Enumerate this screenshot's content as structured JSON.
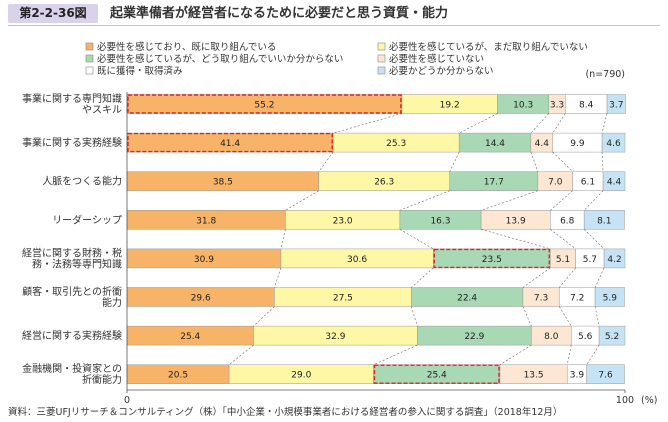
{
  "figure": {
    "number": "第2-2-36図",
    "title": "起業準備者が経営者になるために必要だと思う資質・能力",
    "source": "資料：三菱UFJリサーチ＆コンサルティング（株）「中小企業・小規模事業者における経営者の参入に関する調査」（2018年12月）"
  },
  "chart_data": {
    "type": "bar",
    "orientation": "horizontal",
    "stacked": true,
    "note": "(n=790)",
    "xlim": [
      0,
      100
    ],
    "x_ticks": [
      "0",
      "100"
    ],
    "x_unit": "(%)",
    "legend_position": "top",
    "categories": [
      "事業に関する専門知識やスキル",
      "事業に関する実務経験",
      "人脈をつくる能力",
      "リーダーシップ",
      "経営に関する財務・税務・法務等専門知識",
      "顧客・取引先との折衝能力",
      "経営に関する実務経験",
      "金融機関・投資家との折衝能力"
    ],
    "series": [
      {
        "name": "必要性を感じており、既に取り組んでいる",
        "color": "#f7b367",
        "values": [
          55.2,
          41.4,
          38.5,
          31.8,
          30.9,
          29.6,
          25.4,
          20.5
        ]
      },
      {
        "name": "必要性を感じているが、まだ取り組んでいない",
        "color": "#fdf7a6",
        "values": [
          19.2,
          25.3,
          26.3,
          23.0,
          30.6,
          27.5,
          32.9,
          29.0
        ]
      },
      {
        "name": "必要性を感じているが、どう取り組んでいいか分からない",
        "color": "#a9d8b4",
        "values": [
          10.3,
          14.4,
          17.7,
          16.3,
          23.5,
          22.4,
          22.9,
          25.4
        ]
      },
      {
        "name": "必要性を感じていない",
        "color": "#fde7d3",
        "values": [
          3.3,
          4.4,
          7.0,
          13.9,
          5.1,
          7.3,
          8.0,
          13.5
        ]
      },
      {
        "name": "既に獲得・取得済み",
        "color": "#ffffff",
        "values": [
          8.4,
          9.9,
          6.1,
          6.8,
          5.7,
          7.2,
          5.6,
          3.9
        ]
      },
      {
        "name": "必要かどうか分からない",
        "color": "#c6e3f5",
        "values": [
          3.7,
          4.6,
          4.4,
          8.1,
          4.2,
          5.9,
          5.2,
          7.6
        ]
      }
    ],
    "highlights": [
      {
        "category_index": 0,
        "series_index": 0
      },
      {
        "category_index": 1,
        "series_index": 0
      },
      {
        "category_index": 4,
        "series_index": 2
      },
      {
        "category_index": 7,
        "series_index": 2
      }
    ]
  }
}
